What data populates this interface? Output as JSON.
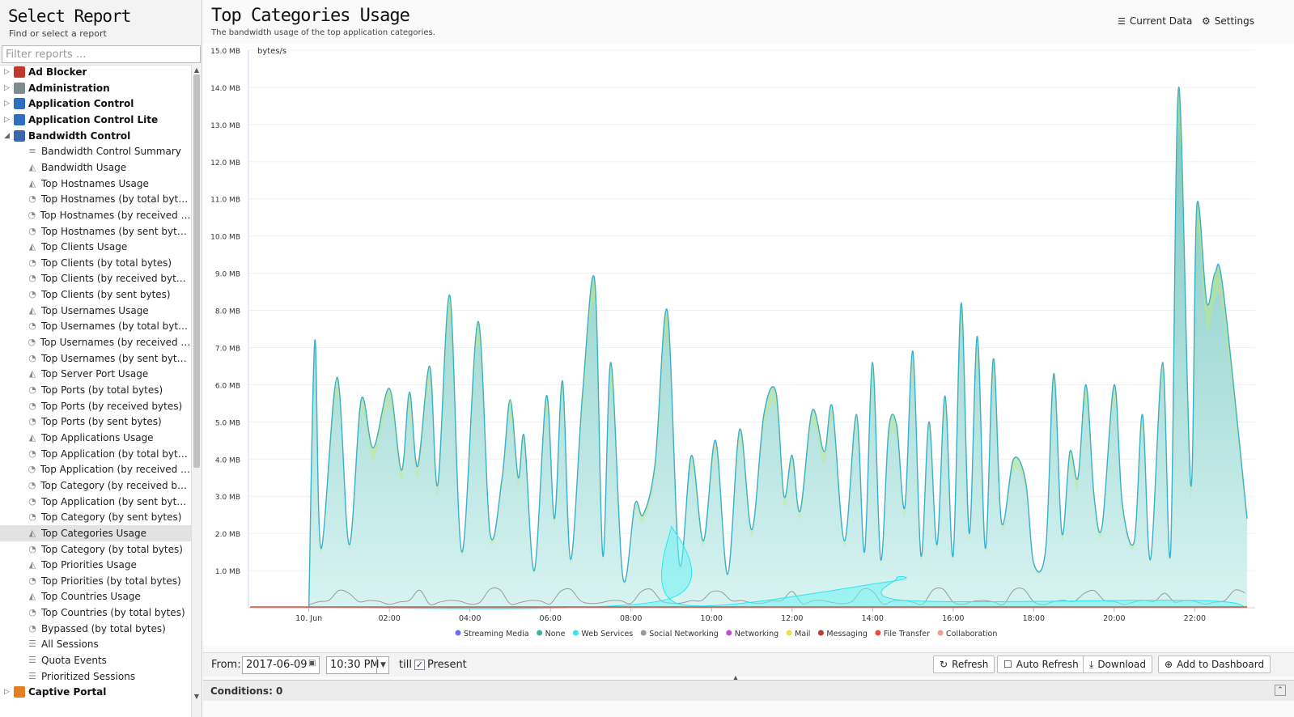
{
  "left": {
    "title": "Select Report",
    "subtitle": "Find or select a report",
    "filter_placeholder": "Filter reports ..."
  },
  "tree": [
    {
      "type": "cat",
      "label": "Ad Blocker",
      "icon": "ad-blocker-icon",
      "color": "#c0392b",
      "expanded": false
    },
    {
      "type": "cat",
      "label": "Administration",
      "icon": "administration-icon",
      "color": "#7f8c8d",
      "expanded": false
    },
    {
      "type": "cat",
      "label": "Application Control",
      "icon": "application-control-icon",
      "color": "#2e6fbf",
      "expanded": false
    },
    {
      "type": "cat",
      "label": "Application Control Lite",
      "icon": "application-control-lite-icon",
      "color": "#2e6fbf",
      "expanded": false
    },
    {
      "type": "cat",
      "label": "Bandwidth Control",
      "icon": "bandwidth-control-icon",
      "color": "#3a68a8",
      "expanded": true
    },
    {
      "type": "child",
      "label": "Bandwidth Control Summary",
      "icon": "text-report-icon"
    },
    {
      "type": "child",
      "label": "Bandwidth Usage",
      "icon": "area-chart-icon"
    },
    {
      "type": "child",
      "label": "Top Hostnames Usage",
      "icon": "area-chart-icon"
    },
    {
      "type": "child",
      "label": "Top Hostnames (by total bytes)",
      "icon": "pie-chart-icon"
    },
    {
      "type": "child",
      "label": "Top Hostnames (by received byte...",
      "icon": "pie-chart-icon"
    },
    {
      "type": "child",
      "label": "Top Hostnames (by sent bytes)",
      "icon": "pie-chart-icon"
    },
    {
      "type": "child",
      "label": "Top Clients Usage",
      "icon": "area-chart-icon"
    },
    {
      "type": "child",
      "label": "Top Clients (by total bytes)",
      "icon": "pie-chart-icon"
    },
    {
      "type": "child",
      "label": "Top Clients (by received bytes)",
      "icon": "pie-chart-icon"
    },
    {
      "type": "child",
      "label": "Top Clients (by sent bytes)",
      "icon": "pie-chart-icon"
    },
    {
      "type": "child",
      "label": "Top Usernames Usage",
      "icon": "area-chart-icon"
    },
    {
      "type": "child",
      "label": "Top Usernames (by total bytes)",
      "icon": "pie-chart-icon"
    },
    {
      "type": "child",
      "label": "Top Usernames (by received bytes)",
      "icon": "pie-chart-icon"
    },
    {
      "type": "child",
      "label": "Top Usernames (by sent bytes)",
      "icon": "pie-chart-icon"
    },
    {
      "type": "child",
      "label": "Top Server Port Usage",
      "icon": "area-chart-icon"
    },
    {
      "type": "child",
      "label": "Top Ports (by total bytes)",
      "icon": "pie-chart-icon"
    },
    {
      "type": "child",
      "label": "Top Ports (by received bytes)",
      "icon": "pie-chart-icon"
    },
    {
      "type": "child",
      "label": "Top Ports (by sent bytes)",
      "icon": "pie-chart-icon"
    },
    {
      "type": "child",
      "label": "Top Applications Usage",
      "icon": "area-chart-icon"
    },
    {
      "type": "child",
      "label": "Top Application (by total bytes)",
      "icon": "pie-chart-icon"
    },
    {
      "type": "child",
      "label": "Top Application (by received bytes)",
      "icon": "pie-chart-icon"
    },
    {
      "type": "child",
      "label": "Top Category (by received bytes)",
      "icon": "pie-chart-icon"
    },
    {
      "type": "child",
      "label": "Top Application (by sent bytes)",
      "icon": "pie-chart-icon"
    },
    {
      "type": "child",
      "label": "Top Category (by sent bytes)",
      "icon": "pie-chart-icon"
    },
    {
      "type": "child",
      "label": "Top Categories Usage",
      "icon": "area-chart-icon",
      "selected": true
    },
    {
      "type": "child",
      "label": "Top Category (by total bytes)",
      "icon": "pie-chart-icon"
    },
    {
      "type": "child",
      "label": "Top Priorities Usage",
      "icon": "area-chart-icon"
    },
    {
      "type": "child",
      "label": "Top Priorities (by total bytes)",
      "icon": "pie-chart-icon"
    },
    {
      "type": "child",
      "label": "Top Countries Usage",
      "icon": "area-chart-icon"
    },
    {
      "type": "child",
      "label": "Top Countries (by total bytes)",
      "icon": "pie-chart-icon"
    },
    {
      "type": "child",
      "label": "Bypassed (by total bytes)",
      "icon": "pie-chart-icon"
    },
    {
      "type": "child",
      "label": "All Sessions",
      "icon": "list-icon"
    },
    {
      "type": "child",
      "label": "Quota Events",
      "icon": "list-icon"
    },
    {
      "type": "child",
      "label": "Prioritized Sessions",
      "icon": "list-icon"
    },
    {
      "type": "cat",
      "label": "Captive Portal",
      "icon": "captive-portal-icon",
      "color": "#e67e22",
      "expanded": false
    }
  ],
  "main": {
    "title": "Top Categories Usage",
    "subtitle": "The bandwidth usage of the top application categories.",
    "current_data_label": "Current Data",
    "settings_label": "Settings"
  },
  "chart_data": {
    "type": "area",
    "stacked": true,
    "ylabel": "bytes/s",
    "y_ticks": [
      "1.0 MB",
      "2.0 MB",
      "3.0 MB",
      "4.0 MB",
      "5.0 MB",
      "6.0 MB",
      "7.0 MB",
      "8.0 MB",
      "9.0 MB",
      "10.0 MB",
      "11.0 MB",
      "12.0 MB",
      "13.0 MB",
      "14.0 MB",
      "15.0 MB"
    ],
    "ylim_mb": [
      0,
      15
    ],
    "x_ticks": [
      "10. Jun",
      "02:00",
      "04:00",
      "06:00",
      "08:00",
      "10:00",
      "12:00",
      "14:00",
      "16:00",
      "18:00",
      "20:00",
      "22:00"
    ],
    "x_range_hours": [
      -1.5,
      23.5
    ],
    "legend_position": "bottom",
    "colors": {
      "streaming": "#3ab0c9",
      "none": "#8fd18a",
      "web": "#2ee6ea",
      "social": "#9a9a9a",
      "file_transfer": "#e74c3c"
    },
    "legend": [
      {
        "name": "Streaming Media",
        "color": "#6c6cf0"
      },
      {
        "name": "None",
        "color": "#3cb4a4"
      },
      {
        "name": "Web Services",
        "color": "#39e6f0"
      },
      {
        "name": "Social Networking",
        "color": "#9a9a9a"
      },
      {
        "name": "Networking",
        "color": "#c050d0"
      },
      {
        "name": "Mail",
        "color": "#f0e040"
      },
      {
        "name": "Messaging",
        "color": "#c0392b"
      },
      {
        "name": "File Transfer",
        "color": "#e74c3c"
      },
      {
        "name": "Collaboration",
        "color": "#f0a090"
      }
    ],
    "peaks_total": [
      [
        0.0,
        0
      ],
      [
        0.15,
        7.2
      ],
      [
        0.3,
        1.6
      ],
      [
        0.7,
        6.2
      ],
      [
        1.0,
        1.7
      ],
      [
        1.3,
        5.6
      ],
      [
        1.6,
        4.3
      ],
      [
        2.0,
        5.9
      ],
      [
        2.3,
        3.7
      ],
      [
        2.5,
        5.8
      ],
      [
        2.7,
        3.8
      ],
      [
        3.0,
        6.5
      ],
      [
        3.2,
        3.3
      ],
      [
        3.5,
        8.4
      ],
      [
        3.8,
        1.5
      ],
      [
        4.2,
        7.7
      ],
      [
        4.5,
        2.0
      ],
      [
        4.8,
        3.5
      ],
      [
        5.0,
        5.6
      ],
      [
        5.2,
        3.5
      ],
      [
        5.35,
        4.6
      ],
      [
        5.6,
        1.0
      ],
      [
        5.9,
        5.7
      ],
      [
        6.1,
        2.4
      ],
      [
        6.3,
        6.1
      ],
      [
        6.5,
        1.3
      ],
      [
        6.8,
        5.8
      ],
      [
        7.1,
        8.8
      ],
      [
        7.3,
        1.4
      ],
      [
        7.5,
        6.6
      ],
      [
        7.8,
        0.8
      ],
      [
        8.1,
        2.8
      ],
      [
        8.3,
        2.5
      ],
      [
        8.6,
        3.9
      ],
      [
        8.9,
        8.0
      ],
      [
        9.2,
        1.2
      ],
      [
        9.5,
        4.1
      ],
      [
        9.8,
        1.8
      ],
      [
        10.1,
        4.5
      ],
      [
        10.4,
        0.9
      ],
      [
        10.7,
        4.8
      ],
      [
        11.0,
        2.1
      ],
      [
        11.3,
        5.2
      ],
      [
        11.6,
        5.8
      ],
      [
        11.8,
        3.0
      ],
      [
        12.0,
        4.1
      ],
      [
        12.2,
        2.6
      ],
      [
        12.5,
        5.3
      ],
      [
        12.8,
        4.2
      ],
      [
        13.0,
        5.4
      ],
      [
        13.3,
        1.8
      ],
      [
        13.6,
        5.2
      ],
      [
        13.8,
        1.5
      ],
      [
        14.0,
        6.6
      ],
      [
        14.2,
        1.3
      ],
      [
        14.4,
        4.8
      ],
      [
        14.6,
        4.9
      ],
      [
        14.8,
        2.7
      ],
      [
        15.0,
        6.9
      ],
      [
        15.2,
        1.4
      ],
      [
        15.4,
        5.0
      ],
      [
        15.6,
        1.7
      ],
      [
        15.8,
        5.7
      ],
      [
        16.0,
        1.4
      ],
      [
        16.2,
        8.2
      ],
      [
        16.4,
        2.0
      ],
      [
        16.6,
        7.3
      ],
      [
        16.8,
        1.6
      ],
      [
        17.0,
        6.7
      ],
      [
        17.2,
        2.3
      ],
      [
        17.5,
        4.0
      ],
      [
        17.8,
        3.4
      ],
      [
        18.0,
        1.2
      ],
      [
        18.3,
        1.6
      ],
      [
        18.5,
        6.3
      ],
      [
        18.7,
        2.0
      ],
      [
        18.9,
        4.2
      ],
      [
        19.1,
        3.5
      ],
      [
        19.3,
        6.0
      ],
      [
        19.5,
        3.0
      ],
      [
        19.7,
        2.2
      ],
      [
        20.0,
        6.0
      ],
      [
        20.2,
        2.8
      ],
      [
        20.5,
        1.8
      ],
      [
        20.7,
        5.2
      ],
      [
        20.9,
        1.3
      ],
      [
        21.2,
        6.6
      ],
      [
        21.4,
        1.5
      ],
      [
        21.6,
        14.0
      ],
      [
        21.9,
        3.3
      ],
      [
        22.05,
        10.8
      ],
      [
        22.3,
        8.2
      ],
      [
        22.5,
        9.0
      ],
      [
        22.7,
        8.6
      ],
      [
        23.3,
        2.4
      ]
    ],
    "peaks_web": [
      [
        8.8,
        0.2
      ],
      [
        9.0,
        2.2
      ],
      [
        9.2,
        0.1
      ],
      [
        14.4,
        0.7
      ],
      [
        14.6,
        0.8
      ],
      [
        14.8,
        0.2
      ],
      [
        22.0,
        0.2
      ]
    ]
  },
  "bottom": {
    "from_label": "From:",
    "date_value": "2017-06-09",
    "time_value": "10:30 PM",
    "till_label": "till",
    "present_checked": true,
    "present_label": "Present",
    "refresh_label": "Refresh",
    "auto_refresh_label": "Auto Refresh",
    "download_label": "Download",
    "add_dashboard_label": "Add to Dashboard"
  },
  "conditions": {
    "label": "Conditions: 0"
  }
}
